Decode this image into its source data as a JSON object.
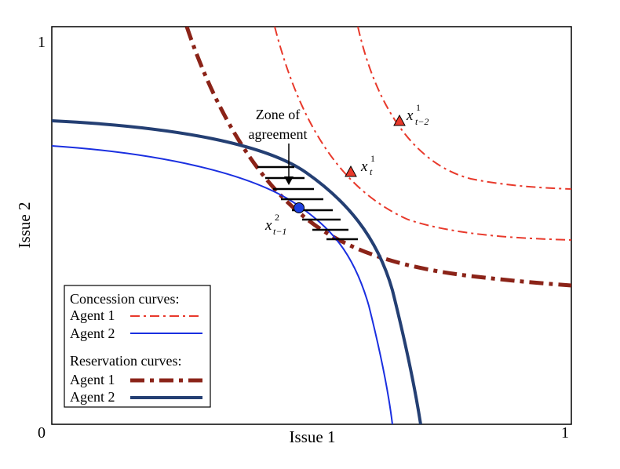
{
  "axes": {
    "x_label": "Issue 1",
    "y_label": "Issue 2",
    "x_ticks": [
      "0",
      "1"
    ],
    "y_ticks": [
      "1"
    ]
  },
  "annotation": {
    "line1": "Zone of",
    "line2": "agreement"
  },
  "points": [
    {
      "id": "xt1",
      "base": "x",
      "sub": "t",
      "sup": "1",
      "shape": "triangle",
      "color": "#e8392b"
    },
    {
      "id": "xtm21",
      "base": "x",
      "sub": "t−2",
      "sup": "1",
      "shape": "triangle",
      "color": "#e8392b"
    },
    {
      "id": "xtm12",
      "base": "x",
      "sub": "t−1",
      "sup": "2",
      "shape": "circle",
      "color": "#1d3fe0"
    }
  ],
  "legend": {
    "concession_header": "Concession curves:",
    "concession_agent1": "Agent 1",
    "concession_agent2": "Agent 2",
    "reservation_header": "Reservation curves:",
    "reservation_agent1": "Agent 1",
    "reservation_agent2": "Agent 2"
  },
  "colors": {
    "concession_agent1": "#e8392b",
    "concession_agent2": "#1a2fe0",
    "reservation_agent1": "#8b2318",
    "reservation_agent2": "#243f73"
  }
}
